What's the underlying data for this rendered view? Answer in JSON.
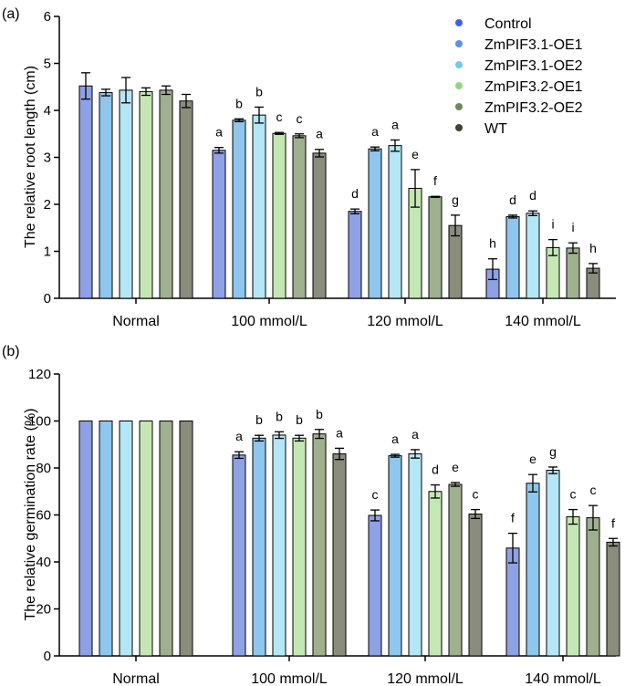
{
  "colors": {
    "Control": "#8EA1E4",
    "ZmPIF3.1-OE1": "#8EC6EE",
    "ZmPIF3.1-OE2": "#B5E6F6",
    "ZmPIF3.2-OE1": "#C5E7B4",
    "ZmPIF3.2-OE2": "#9FB08F",
    "WT": "#8A8C7C"
  },
  "legend_dot_colors": [
    "#3F63E0",
    "#5A93E0",
    "#6CCBEF",
    "#90D680",
    "#6D8B57",
    "#3E4236"
  ],
  "chart_data": [
    {
      "type": "bar",
      "panel_label": "(a)",
      "ylabel": "The relative root length (cm)",
      "xlabel": "",
      "ylim": [
        0,
        6
      ],
      "yticks": [
        "0",
        "1",
        "2",
        "3",
        "4",
        "5",
        "6"
      ],
      "categories": [
        "Normal",
        "100 mmol/L",
        "120 mmol/L",
        "140 mmol/L"
      ],
      "legend_position": "top-right",
      "series": [
        {
          "name": "Control",
          "values": [
            4.52,
            3.15,
            1.85,
            0.62
          ],
          "errors": [
            0.28,
            0.06,
            0.05,
            0.22
          ],
          "letters": [
            "",
            "a",
            "d",
            "h"
          ]
        },
        {
          "name": "ZmPIF3.1-OE1",
          "values": [
            4.38,
            3.79,
            3.18,
            1.74
          ],
          "errors": [
            0.07,
            0.03,
            0.04,
            0.03
          ],
          "letters": [
            "",
            "b",
            "a",
            "d"
          ]
        },
        {
          "name": "ZmPIF3.1-OE2",
          "values": [
            4.43,
            3.9,
            3.25,
            1.81
          ],
          "errors": [
            0.27,
            0.17,
            0.12,
            0.05
          ],
          "letters": [
            "",
            "b",
            "a",
            "d"
          ]
        },
        {
          "name": "ZmPIF3.2-OE1",
          "values": [
            4.4,
            3.51,
            2.34,
            1.08
          ],
          "errors": [
            0.08,
            0.02,
            0.4,
            0.17
          ],
          "letters": [
            "",
            "c",
            "e",
            "i"
          ]
        },
        {
          "name": "ZmPIF3.2-OE2",
          "values": [
            4.43,
            3.46,
            2.16,
            1.07
          ],
          "errors": [
            0.09,
            0.04,
            0.01,
            0.11
          ],
          "letters": [
            "",
            "c",
            "f",
            "i"
          ]
        },
        {
          "name": "WT",
          "values": [
            4.2,
            3.09,
            1.55,
            0.64
          ],
          "errors": [
            0.14,
            0.08,
            0.22,
            0.1
          ],
          "letters": [
            "",
            "a",
            "g",
            "h"
          ]
        }
      ]
    },
    {
      "type": "bar",
      "panel_label": "(b)",
      "ylabel": "The relative germination rate (%)",
      "xlabel": "",
      "ylim": [
        0,
        120
      ],
      "yticks": [
        "0",
        "20",
        "40",
        "60",
        "80",
        "100",
        "120"
      ],
      "categories": [
        "Normal",
        "100 mmol/L",
        "120 mmol/L",
        "140 mmol/L"
      ],
      "series": [
        {
          "name": "Control",
          "values": [
            100,
            85.5,
            59.8,
            45.9
          ],
          "errors": [
            0,
            1.4,
            2.3,
            6.3
          ],
          "letters": [
            "",
            "a",
            "c",
            "f"
          ]
        },
        {
          "name": "ZmPIF3.1-OE1",
          "values": [
            100,
            92.7,
            85.2,
            73.5
          ],
          "errors": [
            0,
            1.2,
            0.6,
            3.7
          ],
          "letters": [
            "",
            "b",
            "a",
            "e"
          ]
        },
        {
          "name": "ZmPIF3.1-OE2",
          "values": [
            100,
            94.0,
            86.0,
            79.0
          ],
          "errors": [
            0,
            1.4,
            1.8,
            1.4
          ],
          "letters": [
            "",
            "b",
            "a",
            "g"
          ]
        },
        {
          "name": "ZmPIF3.2-OE1",
          "values": [
            100,
            92.7,
            70.0,
            59.2
          ],
          "errors": [
            0,
            1.2,
            2.8,
            3.1
          ],
          "letters": [
            "",
            "b",
            "d",
            "c"
          ]
        },
        {
          "name": "ZmPIF3.2-OE2",
          "values": [
            100,
            94.5,
            73.0,
            58.8
          ],
          "errors": [
            0,
            1.9,
            0.8,
            5.2
          ],
          "letters": [
            "",
            "b",
            "e",
            "c"
          ]
        },
        {
          "name": "WT",
          "values": [
            100,
            86.0,
            60.4,
            48.4
          ],
          "errors": [
            0,
            2.4,
            1.9,
            1.6
          ],
          "letters": [
            "",
            "a",
            "c",
            "f"
          ]
        }
      ]
    }
  ]
}
